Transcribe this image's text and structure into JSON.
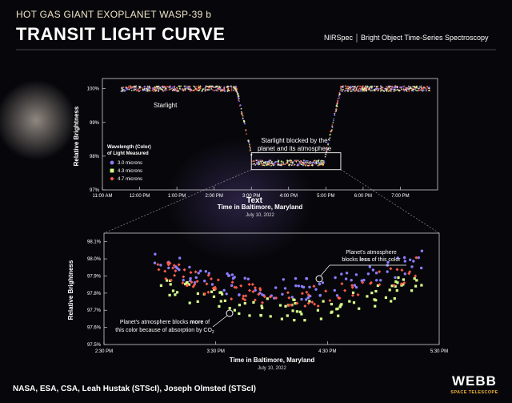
{
  "header": {
    "supertitle": "HOT GAS GIANT EXOPLANET WASP-39 b",
    "title": "TRANSIT LIGHT CURVE",
    "instrument": "NIRSpec",
    "mode": "Bright Object Time-Series Spectroscopy"
  },
  "footer": {
    "credit": "NASA, ESA, CSA, Leah Hustak (STScI), Joseph Olmsted (STScI)",
    "logo_text": "WEBB",
    "logo_subtext": "SPACE TELESCOPE"
  },
  "colors": {
    "background": "#07070b",
    "series_3_0": "#8b7dff",
    "series_4_3": "#d6ff8a",
    "series_4_7": "#ff5b4a",
    "starlight": "#f3ead6"
  },
  "chart_data": [
    {
      "type": "scatter",
      "xlabel": "Time in Baltimore, Maryland",
      "xsublabel": "July 10, 2022",
      "ylabel": "Relative Brightness",
      "xlim": [
        11,
        20
      ],
      "ylim": [
        97,
        100.3
      ],
      "x_ticks": [
        11,
        12,
        13,
        14,
        15,
        16,
        17,
        18,
        19
      ],
      "x_tick_labels": [
        "11:00 AM",
        "12:00 PM",
        "1:00 PM",
        "2:00 PM",
        "3:00 PM",
        "4:00 PM",
        "5:00 PM",
        "6:00 PM",
        "7:00 PM"
      ],
      "y_ticks": [
        97,
        98,
        99,
        100
      ],
      "y_tick_labels": [
        "97%",
        "98%",
        "99%",
        "100%"
      ],
      "transit": {
        "out_of_transit_level": 100.0,
        "in_transit_level": 97.8,
        "ingress_start": 14.6,
        "ingress_end": 15.05,
        "egress_start": 16.95,
        "egress_end": 17.4,
        "time_start": 11.5,
        "time_end": 19.8
      },
      "legend": {
        "title_line1": "Wavelength (Color)",
        "title_line2": "of Light Measured",
        "position": "left",
        "entries": [
          "3.0 microns",
          "4.3 microns",
          "4.7 microns"
        ]
      },
      "annotations": {
        "starlight": "Starlight",
        "blocked_line1": "Starlight blocked by the",
        "blocked_line2": "planet and its atmosphere",
        "stray_text": "Text"
      },
      "zoom_box_x": [
        15.0,
        17.4
      ],
      "zoom_box_y": [
        97.6,
        98.1
      ]
    },
    {
      "type": "scatter",
      "xlabel": "Time in Baltimore, Maryland",
      "xsublabel": "July 10, 2022",
      "ylabel": "Relative Brightness",
      "xlim": [
        14.5,
        17.5
      ],
      "ylim": [
        97.5,
        98.15
      ],
      "x_ticks": [
        14.5,
        15.5,
        16.5,
        17.5
      ],
      "x_tick_labels": [
        "2:30 PM",
        "3:30 PM",
        "4:30 PM",
        "5:30 PM"
      ],
      "y_ticks": [
        97.5,
        97.6,
        97.7,
        97.8,
        97.9,
        98.0,
        98.1
      ],
      "y_tick_labels": [
        "97.5%",
        "97.6%",
        "97.7%",
        "97.8%",
        "97.9%",
        "98.0%",
        "98.1%"
      ],
      "series": [
        {
          "name": "3.0 microns",
          "color": "#8b7dff",
          "offset": 0.08
        },
        {
          "name": "4.3 microns",
          "color": "#d6ff8a",
          "offset": -0.04
        },
        {
          "name": "4.7 microns",
          "color": "#ff5b4a",
          "offset": 0.04
        }
      ],
      "data_range": [
        14.95,
        17.35
      ],
      "curve": {
        "center": 16.15,
        "bottom": 97.74,
        "curvature": 0.13
      },
      "annotations": {
        "less_line1": "Planet's atmosphere",
        "less_line2_pre": "blocks ",
        "less_line2_bold": "less",
        "less_line2_post": " of this color",
        "more_line1_pre": "Planet's atmosphere blocks ",
        "more_line1_bold": "more",
        "more_line1_post": " of",
        "more_line2": "this color because of absorption by CO",
        "more_line2_sub": "2"
      }
    }
  ]
}
